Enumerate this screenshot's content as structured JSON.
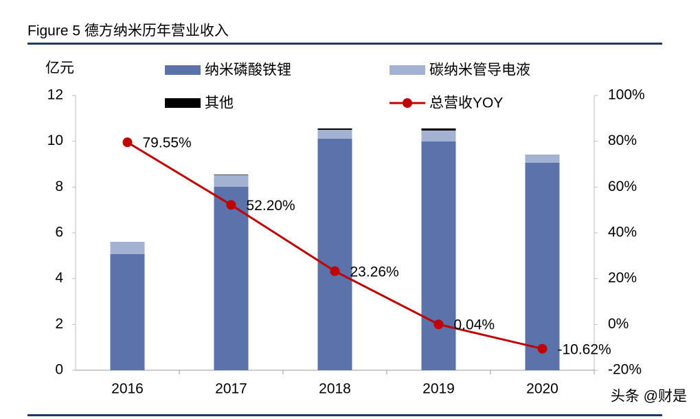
{
  "chart_data": {
    "type": "bar_line",
    "title": "Figure 5  德方纳米历年营业收入",
    "y_unit_label": "亿元",
    "watermark": "头条 @财是",
    "categories": [
      "2016",
      "2017",
      "2018",
      "2019",
      "2020"
    ],
    "series": [
      {
        "name": "纳米磷酸铁锂",
        "color": "#5b72ab",
        "type": "bar",
        "values": [
          5.07,
          8.01,
          10.11,
          9.99,
          9.06
        ]
      },
      {
        "name": "碳纳米管导电液",
        "color": "#a3b2d3",
        "type": "bar",
        "values": [
          0.54,
          0.51,
          0.39,
          0.48,
          0.36
        ]
      },
      {
        "name": "其他",
        "color": "#000000",
        "type": "bar",
        "values": [
          0,
          0.02,
          0.06,
          0.09,
          0
        ]
      },
      {
        "name": "总营收YOY",
        "color": "#c00000",
        "type": "line",
        "axis": "y2",
        "values": [
          79.55,
          52.2,
          23.26,
          0.04,
          -10.62
        ],
        "value_labels": [
          "79.55%",
          "52.20%",
          "23.26%",
          "0.04%",
          "-10.62%"
        ]
      }
    ],
    "ylim": [
      0,
      12
    ],
    "yticks": [
      0,
      2,
      4,
      6,
      8,
      10,
      12
    ],
    "y2lim": [
      -20,
      100
    ],
    "y2ticks": [
      {
        "value": -20,
        "label": "-20%"
      },
      {
        "value": 0,
        "label": "0%"
      },
      {
        "value": 20,
        "label": "20%"
      },
      {
        "value": 40,
        "label": "40%"
      },
      {
        "value": 60,
        "label": "60%"
      },
      {
        "value": 80,
        "label": "80%"
      },
      {
        "value": 100,
        "label": "100%"
      }
    ]
  }
}
